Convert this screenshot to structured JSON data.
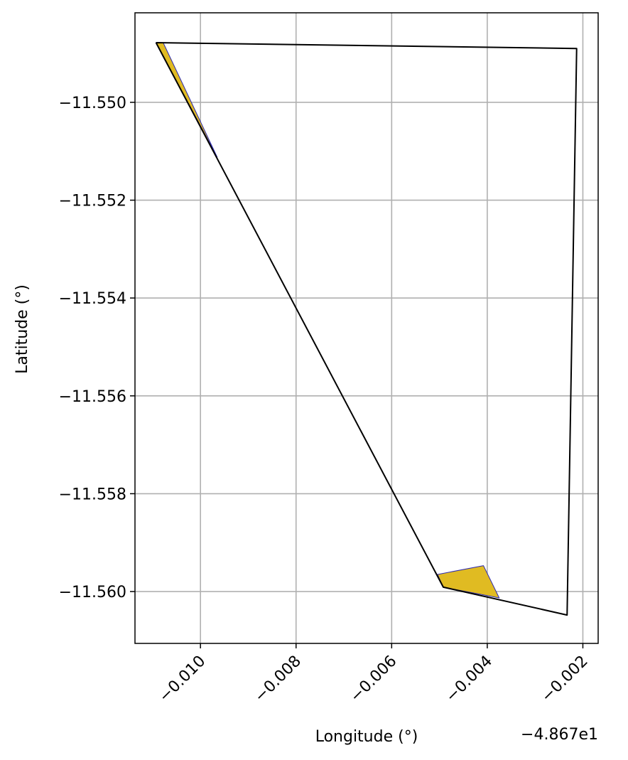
{
  "chart_data": {
    "type": "area",
    "xlabel": "Longitude (°)",
    "ylabel": "Latitude (°)",
    "x_offset_label": "−4.867e1",
    "x_offset": -48.67,
    "xlim": [
      -0.01137,
      -0.00168
    ],
    "ylim": [
      -11.56106,
      -11.54817
    ],
    "xticks": [
      {
        "value": -0.01,
        "label": "−0.010"
      },
      {
        "value": -0.008,
        "label": "−0.008"
      },
      {
        "value": -0.006,
        "label": "−0.006"
      },
      {
        "value": -0.004,
        "label": "−0.004"
      },
      {
        "value": -0.002,
        "label": "−0.002"
      }
    ],
    "yticks": [
      {
        "value": -11.55,
        "label": "−11.550"
      },
      {
        "value": -11.552,
        "label": "−11.552"
      },
      {
        "value": -11.554,
        "label": "−11.554"
      },
      {
        "value": -11.556,
        "label": "−11.556"
      },
      {
        "value": -11.558,
        "label": "−11.558"
      },
      {
        "value": -11.56,
        "label": "−11.560"
      }
    ],
    "grid": true,
    "colors": {
      "outline": "#000000",
      "fill": "#e0bb22",
      "fill_edge": "#2d2ab0",
      "grid": "#b0b0b0",
      "axes": "#000000"
    },
    "outline_polygon": [
      [
        -0.01093,
        -11.54878
      ],
      [
        -0.00213,
        -11.5489
      ],
      [
        -0.00233,
        -11.56048
      ],
      [
        -0.00492,
        -11.55991
      ],
      [
        -0.01093,
        -11.54878
      ]
    ],
    "filled_polygons": [
      [
        [
          -0.01093,
          -11.54878
        ],
        [
          -0.01078,
          -11.54878
        ],
        [
          -0.00965,
          -11.55112
        ],
        [
          -0.01093,
          -11.54878
        ]
      ],
      [
        [
          -0.00504,
          -11.55965
        ],
        [
          -0.00408,
          -11.55947
        ],
        [
          -0.00375,
          -11.56013
        ],
        [
          -0.00492,
          -11.55991
        ],
        [
          -0.00504,
          -11.55965
        ]
      ]
    ]
  }
}
